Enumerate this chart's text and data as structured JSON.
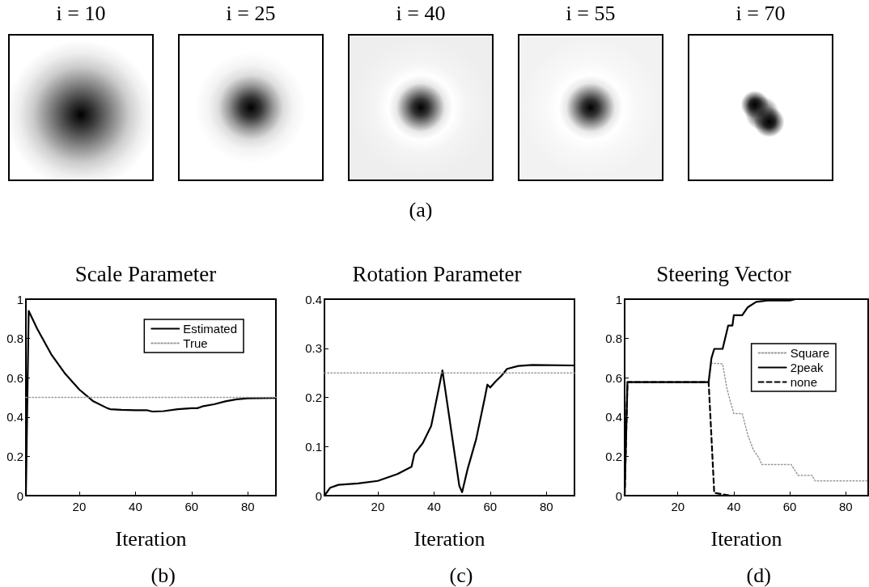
{
  "chart_data": [
    {
      "type": "other",
      "title": "i = 10"
    },
    {
      "type": "other",
      "title": "i = 25"
    },
    {
      "type": "other",
      "title": "i = 40",
      "annotations": [
        "(a)"
      ]
    },
    {
      "type": "other",
      "title": "i = 55"
    },
    {
      "type": "other",
      "title": "i = 70"
    },
    {
      "type": "line",
      "title": "Scale Parameter",
      "xlabel": "Iteration",
      "annotations": [
        "(b)"
      ],
      "xlim": [
        1,
        90
      ],
      "xticks": [
        20,
        40,
        60,
        80
      ],
      "ylim": [
        0,
        1
      ],
      "yticks": [
        0,
        0.2,
        0.4,
        0.6,
        0.8,
        1
      ],
      "legend": "top right",
      "marker": "none",
      "series": [
        {
          "name": "Estimated",
          "color": "#000000",
          "line_style": "solid",
          "x": [
            1,
            2,
            5,
            10,
            15,
            20,
            25,
            30,
            31,
            35,
            40,
            44,
            46,
            50,
            55,
            60,
            62,
            64,
            68,
            72,
            76,
            80,
            90
          ],
          "values": [
            0,
            0.94,
            0.85,
            0.72,
            0.62,
            0.54,
            0.48,
            0.445,
            0.44,
            0.437,
            0.435,
            0.435,
            0.428,
            0.43,
            0.44,
            0.445,
            0.445,
            0.455,
            0.465,
            0.48,
            0.49,
            0.495,
            0.497
          ]
        },
        {
          "name": "True",
          "color": "#999999",
          "line_style": "dotted",
          "x": [
            1,
            90
          ],
          "values": [
            0.5,
            0.5
          ]
        }
      ]
    },
    {
      "type": "line",
      "title": "Rotation Parameter",
      "xlabel": "Iteration",
      "annotations": [
        "(c)"
      ],
      "xlim": [
        1,
        90
      ],
      "xticks": [
        20,
        40,
        60,
        80
      ],
      "ylim": [
        0,
        0.4
      ],
      "yticks": [
        0,
        0.1,
        0.2,
        0.3,
        0.4
      ],
      "marker": "none",
      "series": [
        {
          "color": "#000000",
          "line_style": "solid",
          "x": [
            1,
            3,
            6,
            13,
            20,
            27,
            32,
            33,
            36,
            39,
            43,
            49,
            50,
            52,
            55,
            58,
            59,
            60,
            62,
            64,
            66,
            70,
            75,
            90
          ],
          "values": [
            0,
            0.016,
            0.022,
            0.025,
            0.03,
            0.044,
            0.059,
            0.085,
            0.107,
            0.142,
            0.255,
            0.02,
            0.007,
            0.055,
            0.115,
            0.197,
            0.226,
            0.22,
            0.233,
            0.244,
            0.258,
            0.264,
            0.266,
            0.265
          ]
        },
        {
          "color": "#999999",
          "line_style": "dotted",
          "x": [
            1,
            90
          ],
          "values": [
            0.25,
            0.25
          ]
        }
      ]
    },
    {
      "type": "line",
      "title": "Steering Vector",
      "xlabel": "Iteration",
      "annotations": [
        "(d)"
      ],
      "xlim": [
        1,
        88
      ],
      "xticks": [
        20,
        40,
        60,
        80
      ],
      "ylim": [
        0,
        1
      ],
      "yticks": [
        0,
        0.2,
        0.4,
        0.6,
        0.8,
        1
      ],
      "legend": "right",
      "marker": "none",
      "series": [
        {
          "name": "Square",
          "color": "#999999",
          "line_style": "dotted",
          "x": [
            1,
            2,
            31,
            32,
            36,
            37.5,
            38.5,
            40,
            43,
            45,
            47,
            49,
            50,
            60.5,
            63,
            68,
            69,
            88
          ],
          "values": [
            0,
            0.578,
            0.578,
            0.674,
            0.671,
            0.548,
            0.493,
            0.418,
            0.418,
            0.308,
            0.233,
            0.192,
            0.158,
            0.158,
            0.103,
            0.103,
            0.075,
            0.075
          ]
        },
        {
          "name": "2peak",
          "color": "#000000",
          "line_style": "solid",
          "x": [
            1,
            2,
            31,
            32,
            33,
            36,
            38,
            39.5,
            40,
            43,
            45,
            48,
            52,
            60,
            62,
            88
          ],
          "values": [
            0,
            0.578,
            0.578,
            0.699,
            0.747,
            0.747,
            0.866,
            0.866,
            0.918,
            0.918,
            0.959,
            0.986,
            0.993,
            0.993,
            1,
            1
          ]
        },
        {
          "name": "none",
          "color": "#000000",
          "line_style": "dashed",
          "x": [
            1,
            2,
            31,
            32,
            33,
            36,
            39,
            40
          ],
          "values": [
            0,
            0.578,
            0.578,
            0.3,
            0.014,
            0.007,
            0,
            0
          ]
        }
      ]
    }
  ]
}
